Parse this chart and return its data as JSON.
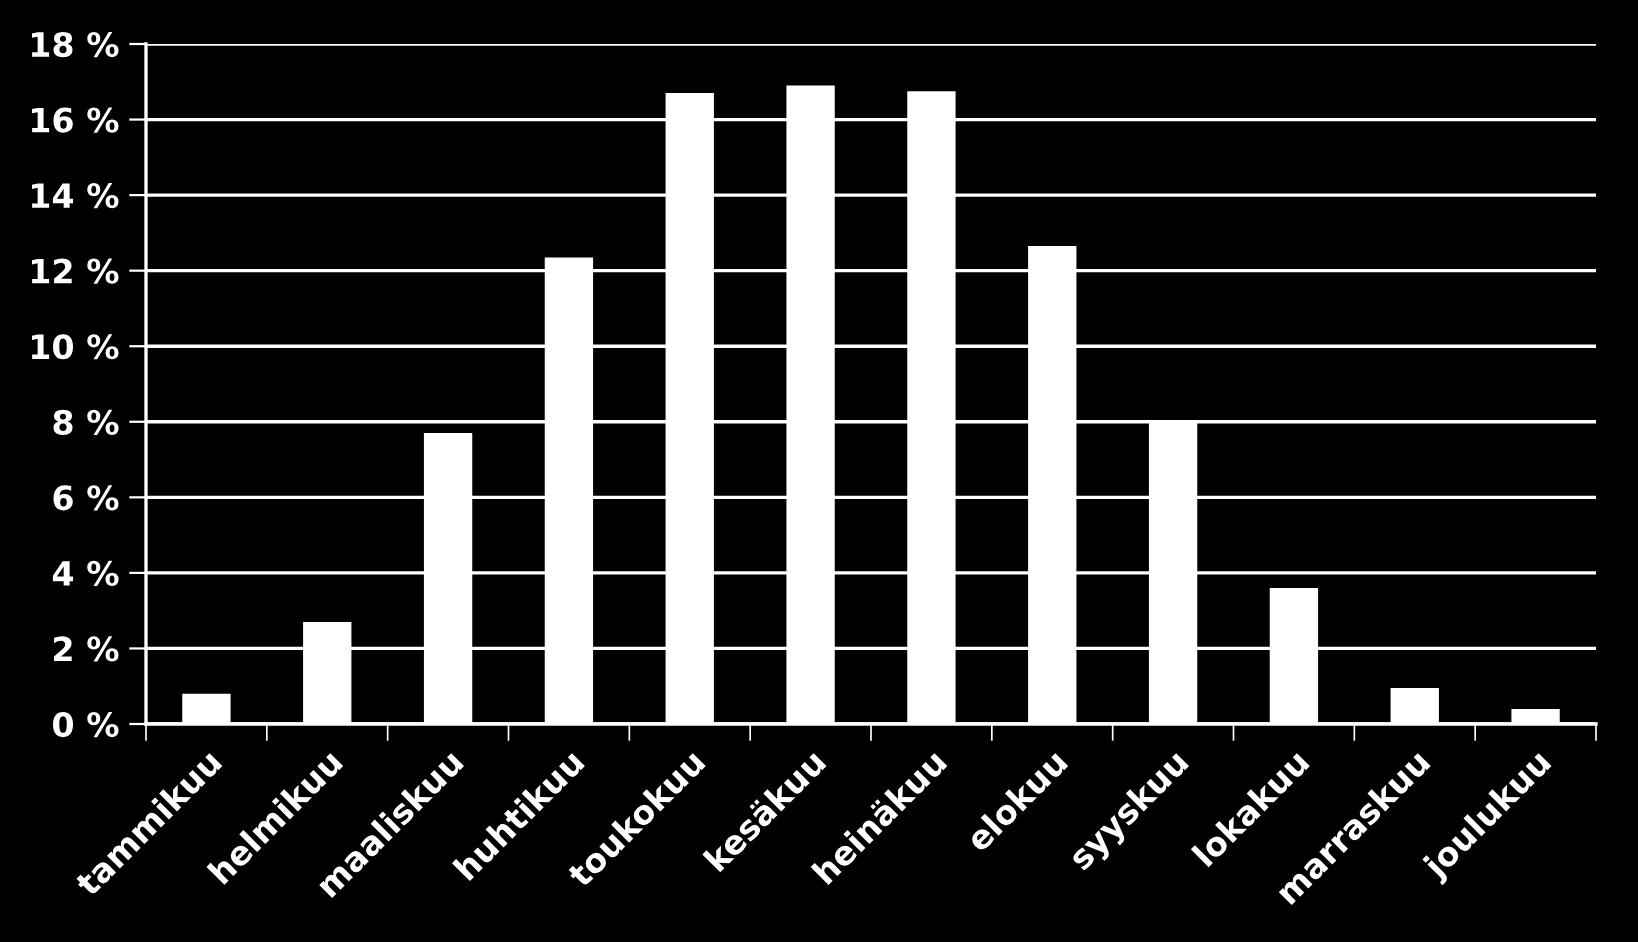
{
  "chart_data": {
    "type": "bar",
    "categories": [
      "tammikuu",
      "helmikuu",
      "maaliskuu",
      "huhtikuu",
      "toukokuu",
      "kesäkuu",
      "heinäkuu",
      "elokuu",
      "syyskuu",
      "lokakuu",
      "marraskuu",
      "joulukuu"
    ],
    "values": [
      0.8,
      2.7,
      7.7,
      12.35,
      16.7,
      16.9,
      16.75,
      12.65,
      8.05,
      3.6,
      0.95,
      0.4
    ],
    "color": "#ffffff",
    "ylim": [
      0,
      18
    ],
    "yticks": [
      {
        "value": 0,
        "label": "0 %"
      },
      {
        "value": 2,
        "label": "2 %"
      },
      {
        "value": 4,
        "label": "4 %"
      },
      {
        "value": 6,
        "label": "6 %"
      },
      {
        "value": 8,
        "label": "8 %"
      },
      {
        "value": 10,
        "label": "10 %"
      },
      {
        "value": 12,
        "label": "12 %"
      },
      {
        "value": 14,
        "label": "14 %"
      },
      {
        "value": 16,
        "label": "16 %"
      },
      {
        "value": 18,
        "label": "18 %"
      }
    ],
    "grid": "y"
  }
}
